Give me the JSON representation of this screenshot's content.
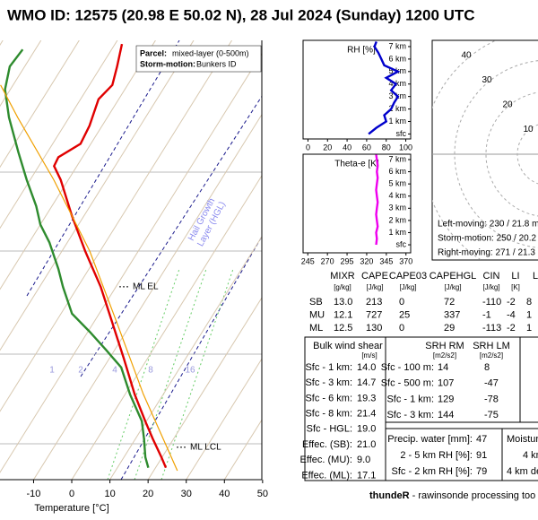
{
  "title": "WMO ID: 12575 (20.98 E 50.02 N), 28 Jul 2024 (Sunday) 1200 UTC",
  "chart_data": [
    {
      "type": "skewt",
      "xlabel": "Temperature [°C]",
      "xlim": [
        -18.8,
        49.8
      ],
      "xticks": [
        -10,
        0,
        10,
        20,
        30,
        40,
        50
      ],
      "ylim": [
        1050,
        100
      ],
      "log_y": true,
      "series": [
        {
          "color": "#e00000",
          "pressure": [
            985,
            931,
            843,
            768,
            665,
            549,
            453,
            374,
            309,
            255,
            211,
            196,
            187,
            174,
            158,
            137,
            127,
            115,
            102
          ],
          "values": [
            22.7,
            19.8,
            14.5,
            9.7,
            2.5,
            -6.2,
            -15.1,
            -24.0,
            -33.9,
            -43.3,
            -52.0,
            -56.0,
            -56.3,
            -52.7,
            -53.3,
            -55.3,
            -54.0,
            -55.8,
            -58.2
          ]
        },
        {
          "color": "#2e8b2e",
          "pressure": [
            985,
            931,
            843,
            768,
            665,
            576,
            524,
            476,
            432,
            374,
            340,
            295,
            268,
            243,
            211,
            182,
            151,
            130,
            115,
            105
          ],
          "values": [
            18.1,
            15.6,
            12.2,
            8.8,
            1.3,
            -5.4,
            -12.3,
            -19.5,
            -27.1,
            -33.9,
            -38.0,
            -44.7,
            -50.0,
            -54.1,
            -60.9,
            -67.6,
            -75.8,
            -81.4,
            -83.9,
            -83.3
          ]
        },
        {
          "color": "#f0a000",
          "pressure": [
            1001,
            665,
            453,
            309,
            211,
            151,
            127
          ],
          "values": [
            26.2,
            4.8,
            -13.9,
            -32.7,
            -53.8,
            -73.5,
            -83.3
          ]
        }
      ],
      "annotations": [
        {
          "text": "ML EL",
          "pressure": 374
        },
        {
          "text": "ML LCL",
          "pressure": 883
        }
      ],
      "parcel_key": "Parcel:",
      "parcel_text": "mixed-layer (0-500m)",
      "storm_key": "Storm-motion:",
      "storm_text": "Bunkers ID",
      "hgl_label": [
        "Hail Growth",
        "Layer (HGL)"
      ],
      "mixing_ratio_labels": [
        1,
        2,
        4,
        8,
        16
      ]
    },
    {
      "type": "profile",
      "title": "RH [%]",
      "xlim": [
        -5,
        105
      ],
      "xticks": [
        0,
        20,
        40,
        60,
        80,
        100
      ],
      "ylim": [
        -0.4,
        7.5
      ],
      "yticks": [
        {
          "value": 0,
          "label": "sfc"
        },
        {
          "value": 1,
          "label": "1 km"
        },
        {
          "value": 2,
          "label": "2 km"
        },
        {
          "value": 3,
          "label": "3 km"
        },
        {
          "value": 4,
          "label": "4 km"
        },
        {
          "value": 5,
          "label": "5 km"
        },
        {
          "value": 6,
          "label": "6 km"
        },
        {
          "value": 7,
          "label": "7 km"
        }
      ],
      "series": [
        {
          "color": "#0000cc",
          "height": [
            0,
            0.5,
            1,
            1.5,
            2,
            2.5,
            3,
            3.5,
            4,
            4.5,
            5,
            5.5,
            6,
            6.5,
            7,
            7.4
          ],
          "values": [
            62,
            70,
            80,
            78,
            85,
            88,
            92,
            85,
            90,
            80,
            92,
            78,
            75,
            72,
            68,
            70
          ]
        }
      ]
    },
    {
      "type": "profile",
      "title": "Theta-e [K]",
      "xlim": [
        239,
        376
      ],
      "xticks": [
        245,
        270,
        295,
        320,
        345,
        370
      ],
      "ylim": [
        -0.66,
        7.44
      ],
      "yticks": [
        {
          "value": 0,
          "label": "sfc"
        },
        {
          "value": 1,
          "label": "1 km"
        },
        {
          "value": 2,
          "label": "2 km"
        },
        {
          "value": 3,
          "label": "3 km"
        },
        {
          "value": 4,
          "label": "4 km"
        },
        {
          "value": 5,
          "label": "5 km"
        },
        {
          "value": 6,
          "label": "6 km"
        },
        {
          "value": 7,
          "label": "7 km"
        }
      ],
      "series": [
        {
          "color": "#ee00ee",
          "height": [
            0,
            0.5,
            1,
            1.5,
            2,
            2.5,
            3,
            3.5,
            4,
            4.5,
            5,
            5.5,
            6,
            6.5,
            7,
            7.4
          ],
          "values": [
            332,
            333,
            332,
            334,
            333,
            332,
            333,
            334,
            333,
            332,
            333,
            334,
            333,
            334,
            333,
            332
          ]
        }
      ]
    },
    {
      "type": "hodograph",
      "rings": [
        10,
        20,
        30,
        40
      ],
      "lines": [
        "Left-moving: 230 / 21.8 m",
        "Storm-motion: 250 / 20.2",
        "Right-moving: 271 / 21.3"
      ]
    }
  ],
  "parcel_table": {
    "headers": [
      {
        "name": "MIXR",
        "unit": "[g/kg]"
      },
      {
        "name": "CAPE",
        "unit": "[J/kg]"
      },
      {
        "name": "CAPE03",
        "unit": "[J/kg]"
      },
      {
        "name": "CAPEHGL",
        "unit": "[J/kg]"
      },
      {
        "name": "CIN",
        "unit": "[J/kg]"
      },
      {
        "name": "LI",
        "unit": "[K]"
      },
      {
        "name": "L"
      }
    ],
    "rows": [
      {
        "label": "SB",
        "values": [
          "13.0",
          "213",
          "0",
          "72",
          "-110",
          "-2",
          "8"
        ]
      },
      {
        "label": "MU",
        "values": [
          "12.1",
          "727",
          "25",
          "337",
          "-1",
          "-4",
          "1"
        ]
      },
      {
        "label": "ML",
        "values": [
          "12.5",
          "130",
          "0",
          "29",
          "-113",
          "-2",
          "1"
        ]
      }
    ]
  },
  "shear_table": {
    "title": "Bulk wind shear",
    "unit": "[m/s]",
    "rows": [
      {
        "label": "Sfc - 1 km:",
        "value": "14.0"
      },
      {
        "label": "Sfc - 3 km:",
        "value": "14.7"
      },
      {
        "label": "Sfc - 6 km:",
        "value": "19.3"
      },
      {
        "label": "Sfc - 8 km:",
        "value": "21.4"
      },
      {
        "label": "Sfc - HGL:",
        "value": "19.0"
      },
      {
        "label": "Effec. (SB):",
        "value": "21.0"
      },
      {
        "label": "Effec. (MU):",
        "value": "9.0"
      },
      {
        "label": "Effec. (ML):",
        "value": "17.1"
      }
    ]
  },
  "srh_table": {
    "headers": [
      {
        "name": "SRH RM",
        "unit": "[m2/s2]"
      },
      {
        "name": "SRH LM",
        "unit": "[m2/s2]"
      }
    ],
    "rows": [
      {
        "label": "Sfc - 100 m:",
        "values": [
          "14",
          "8"
        ]
      },
      {
        "label": "Sfc - 500 m:",
        "values": [
          "107",
          "-47"
        ]
      },
      {
        "label": "Sfc - 1 km:",
        "values": [
          "129",
          "-78"
        ]
      },
      {
        "label": "Sfc - 3 km:",
        "values": [
          "144",
          "-75"
        ]
      }
    ]
  },
  "moisture_table": {
    "rows": [
      {
        "label": "Precip. water [mm]:",
        "value": "47"
      },
      {
        "label": "2 - 5 km RH [%]:",
        "value": "91"
      },
      {
        "label": "Sfc - 2 km RH [%]:",
        "value": "79"
      }
    ],
    "cut_texts": [
      "Moisture",
      "4 km",
      "4 km de"
    ]
  },
  "footer": {
    "brand": "thundeR",
    "text": " - rawinsonde processing too"
  }
}
